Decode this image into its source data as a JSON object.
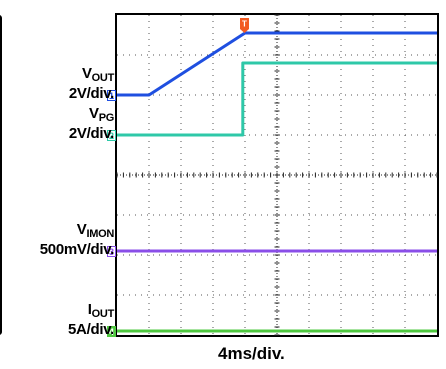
{
  "chart_data": {
    "type": "line",
    "xlabel": "4ms/div.",
    "grid": true,
    "divisions": {
      "x": 10,
      "y": 8
    },
    "trigger_marker": "T",
    "series": [
      {
        "label": [
          "V",
          "OUT",
          "2V/div."
        ],
        "channel": "1",
        "color": "#1f4fe0",
        "x": [
          0,
          1.0,
          4.0,
          10.0
        ],
        "y": [
          2.0,
          2.0,
          3.55,
          3.55
        ]
      },
      {
        "label": [
          "V",
          "PG",
          "2V/div."
        ],
        "channel": "2",
        "color": "#2ec8a8",
        "x": [
          0,
          3.93,
          3.93,
          10.0
        ],
        "y": [
          1.0,
          1.0,
          2.8,
          2.8
        ]
      },
      {
        "label": [
          "V",
          "IMON",
          "500mV/div."
        ],
        "channel": "3",
        "color": "#8a4ee8",
        "x": [
          0,
          10.0
        ],
        "y": [
          -1.9,
          -1.9
        ]
      },
      {
        "label": [
          "I",
          "OUT",
          "5A/div."
        ],
        "channel": "4",
        "color": "#4fc840",
        "x": [
          0,
          10.0
        ],
        "y": [
          -3.9,
          -3.9
        ]
      }
    ]
  }
}
